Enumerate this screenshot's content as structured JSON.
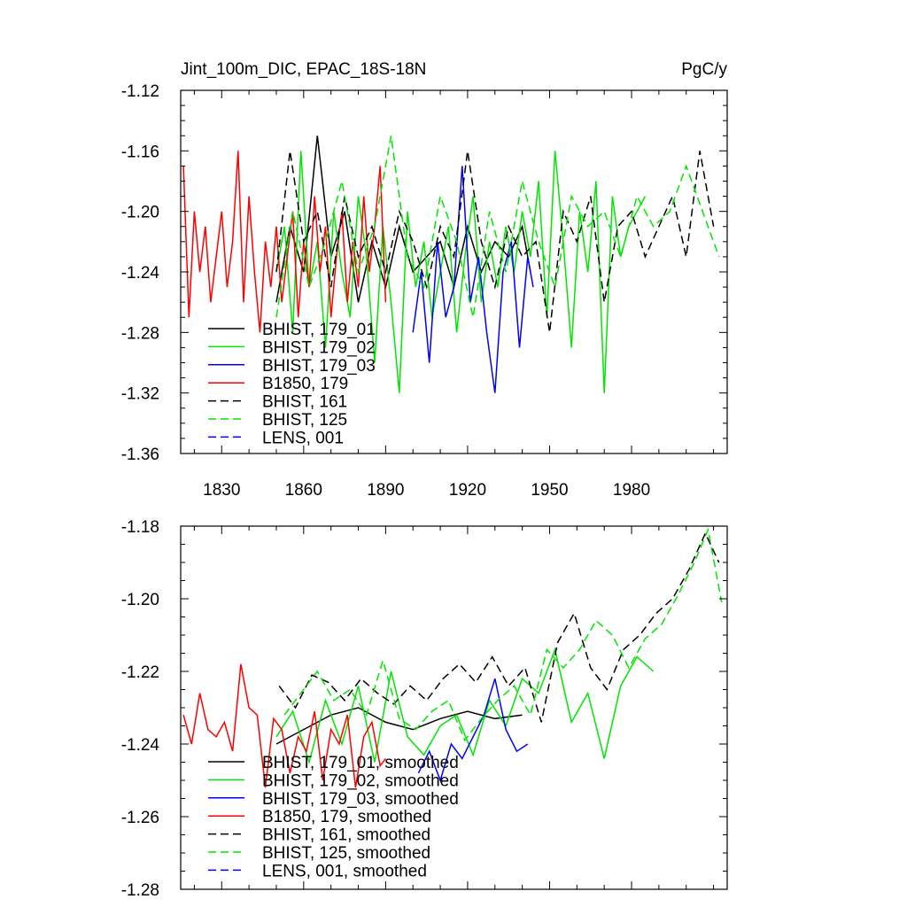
{
  "chart_data": [
    {
      "type": "line",
      "title": "Jint_100m_DIC, EPAC_18S-18N",
      "units": "PgC/y",
      "xlim": [
        1815,
        2015
      ],
      "ylim": [
        -1.36,
        -1.12
      ],
      "xticks": [
        1830,
        1860,
        1890,
        1920,
        1950,
        1980
      ],
      "yticks": [
        -1.36,
        -1.32,
        -1.28,
        -1.24,
        -1.2,
        -1.16,
        -1.12
      ],
      "ytick_labels": [
        "-1.36",
        "-1.32",
        "-1.28",
        "-1.24",
        "-1.20",
        "-1.16",
        "-1.12"
      ],
      "legend_position": "lower-left",
      "series": [
        {
          "name": "BHIST, 179_01",
          "color": "#000000",
          "dash": "solid",
          "x": [
            1850,
            1855,
            1860,
            1865,
            1870,
            1875,
            1880,
            1885,
            1890,
            1895,
            1900,
            1905,
            1910,
            1915,
            1920,
            1925,
            1930,
            1935,
            1940,
            1943
          ],
          "y": [
            -1.26,
            -1.21,
            -1.24,
            -1.15,
            -1.23,
            -1.2,
            -1.26,
            -1.22,
            -1.25,
            -1.21,
            -1.24,
            -1.23,
            -1.22,
            -1.25,
            -1.21,
            -1.24,
            -1.22,
            -1.23,
            -1.21,
            -1.24
          ]
        },
        {
          "name": "BHIST, 179_02",
          "color": "#00e600",
          "dash": "solid",
          "x": [
            1850,
            1853,
            1856,
            1859,
            1862,
            1865,
            1868,
            1871,
            1874,
            1877,
            1880,
            1883,
            1886,
            1889,
            1892,
            1895,
            1898,
            1901,
            1904,
            1907,
            1910,
            1913,
            1916,
            1919,
            1922,
            1925,
            1928,
            1931,
            1934,
            1937,
            1940,
            1943,
            1946,
            1949,
            1952,
            1955,
            1958,
            1961,
            1964,
            1967,
            1970,
            1973,
            1976,
            1979,
            1982,
            1985
          ],
          "y": [
            -1.24,
            -1.21,
            -1.28,
            -1.16,
            -1.25,
            -1.22,
            -1.29,
            -1.2,
            -1.24,
            -1.27,
            -1.19,
            -1.23,
            -1.3,
            -1.21,
            -1.26,
            -1.32,
            -1.2,
            -1.25,
            -1.22,
            -1.27,
            -1.24,
            -1.21,
            -1.28,
            -1.23,
            -1.19,
            -1.26,
            -1.22,
            -1.25,
            -1.21,
            -1.24,
            -1.2,
            -1.23,
            -1.18,
            -1.27,
            -1.16,
            -1.22,
            -1.29,
            -1.2,
            -1.24,
            -1.18,
            -1.32,
            -1.19,
            -1.23,
            -1.21,
            -1.2,
            -1.19
          ]
        },
        {
          "name": "BHIST, 179_03",
          "color": "#0000ff",
          "dash": "solid",
          "x": [
            1900,
            1903,
            1906,
            1909,
            1912,
            1915,
            1918,
            1921,
            1924,
            1927,
            1930,
            1933,
            1936,
            1939,
            1942,
            1944
          ],
          "y": [
            -1.28,
            -1.24,
            -1.3,
            -1.22,
            -1.27,
            -1.25,
            -1.17,
            -1.26,
            -1.23,
            -1.28,
            -1.32,
            -1.24,
            -1.22,
            -1.29,
            -1.23,
            -1.25
          ]
        },
        {
          "name": "B1850, 179",
          "color": "#ff0000",
          "dash": "solid",
          "x": [
            1816,
            1818,
            1820,
            1822,
            1824,
            1826,
            1828,
            1830,
            1832,
            1834,
            1836,
            1838,
            1840,
            1842,
            1844,
            1846,
            1848,
            1850,
            1852,
            1854,
            1856,
            1858,
            1860,
            1862,
            1864,
            1866,
            1868,
            1870,
            1872,
            1874,
            1876,
            1878,
            1880,
            1882,
            1884,
            1886,
            1888,
            1890
          ],
          "y": [
            -1.17,
            -1.27,
            -1.2,
            -1.24,
            -1.21,
            -1.26,
            -1.23,
            -1.2,
            -1.25,
            -1.22,
            -1.16,
            -1.26,
            -1.19,
            -1.24,
            -1.28,
            -1.22,
            -1.25,
            -1.21,
            -1.26,
            -1.23,
            -1.2,
            -1.27,
            -1.22,
            -1.25,
            -1.19,
            -1.24,
            -1.21,
            -1.27,
            -1.23,
            -1.2,
            -1.26,
            -1.22,
            -1.25,
            -1.19,
            -1.24,
            -1.21,
            -1.17,
            -1.26
          ]
        },
        {
          "name": "BHIST, 161",
          "color": "#000000",
          "dash": "dashed",
          "x": [
            1850,
            1855,
            1860,
            1865,
            1870,
            1875,
            1880,
            1885,
            1890,
            1895,
            1900,
            1905,
            1910,
            1915,
            1920,
            1925,
            1930,
            1935,
            1940,
            1945,
            1950,
            1955,
            1960,
            1965,
            1970,
            1975,
            1980,
            1985,
            1990,
            1995,
            2000,
            2005,
            2010
          ],
          "y": [
            -1.24,
            -1.16,
            -1.22,
            -1.2,
            -1.25,
            -1.19,
            -1.23,
            -1.21,
            -1.24,
            -1.2,
            -1.22,
            -1.25,
            -1.21,
            -1.23,
            -1.16,
            -1.22,
            -1.25,
            -1.21,
            -1.23,
            -1.22,
            -1.28,
            -1.2,
            -1.22,
            -1.19,
            -1.26,
            -1.21,
            -1.2,
            -1.23,
            -1.21,
            -1.19,
            -1.23,
            -1.16,
            -1.21
          ]
        },
        {
          "name": "BHIST, 125",
          "color": "#00e600",
          "dash": "dashed",
          "x": [
            1850,
            1856,
            1862,
            1868,
            1874,
            1880,
            1886,
            1892,
            1898,
            1904,
            1910,
            1916,
            1922,
            1928,
            1934,
            1940,
            1946,
            1952,
            1958,
            1964,
            1970,
            1976,
            1982,
            1988,
            1994,
            2000,
            2006,
            2012
          ],
          "y": [
            -1.27,
            -1.2,
            -1.25,
            -1.22,
            -1.18,
            -1.24,
            -1.21,
            -1.15,
            -1.23,
            -1.25,
            -1.19,
            -1.22,
            -1.27,
            -1.2,
            -1.24,
            -1.18,
            -1.22,
            -1.25,
            -1.19,
            -1.21,
            -1.2,
            -1.23,
            -1.19,
            -1.21,
            -1.2,
            -1.17,
            -1.2,
            -1.23
          ]
        },
        {
          "name": "LENS, 001",
          "color": "#0000ff",
          "dash": "dashed",
          "x": [],
          "y": []
        }
      ]
    },
    {
      "type": "line",
      "xlim": [
        1815,
        2015
      ],
      "ylim": [
        -1.28,
        -1.18
      ],
      "xticks": [
        1830,
        1860,
        1890,
        1920,
        1950,
        1980
      ],
      "yticks": [
        -1.28,
        -1.26,
        -1.24,
        -1.22,
        -1.2,
        -1.18
      ],
      "ytick_labels": [
        "-1.28",
        "-1.26",
        "-1.24",
        "-1.22",
        "-1.20",
        "-1.18"
      ],
      "legend_position": "lower-left",
      "series": [
        {
          "name": "BHIST, 179_01, smoothed",
          "color": "#000000",
          "dash": "solid",
          "x": [
            1850,
            1860,
            1870,
            1880,
            1890,
            1900,
            1910,
            1920,
            1930,
            1940
          ],
          "y": [
            -1.24,
            -1.236,
            -1.232,
            -1.23,
            -1.234,
            -1.236,
            -1.233,
            -1.231,
            -1.233,
            -1.232
          ]
        },
        {
          "name": "BHIST, 179_02, smoothed",
          "color": "#00e600",
          "dash": "solid",
          "x": [
            1850,
            1856,
            1862,
            1868,
            1874,
            1880,
            1886,
            1892,
            1898,
            1904,
            1910,
            1916,
            1922,
            1928,
            1934,
            1940,
            1946,
            1952,
            1958,
            1964,
            1970,
            1976,
            1982,
            1988
          ],
          "y": [
            -1.238,
            -1.231,
            -1.245,
            -1.228,
            -1.24,
            -1.224,
            -1.245,
            -1.22,
            -1.238,
            -1.243,
            -1.235,
            -1.232,
            -1.243,
            -1.228,
            -1.235,
            -1.222,
            -1.226,
            -1.214,
            -1.234,
            -1.226,
            -1.244,
            -1.224,
            -1.216,
            -1.22
          ]
        },
        {
          "name": "BHIST, 179_03, smoothed",
          "color": "#0000ff",
          "dash": "solid",
          "x": [
            1902,
            1906,
            1910,
            1914,
            1918,
            1922,
            1926,
            1930,
            1934,
            1938,
            1942
          ],
          "y": [
            -1.248,
            -1.242,
            -1.25,
            -1.24,
            -1.244,
            -1.238,
            -1.232,
            -1.222,
            -1.236,
            -1.242,
            -1.24
          ]
        },
        {
          "name": "B1850, 179, smoothed",
          "color": "#ff0000",
          "dash": "solid",
          "x": [
            1816,
            1819,
            1822,
            1825,
            1828,
            1831,
            1834,
            1837,
            1840,
            1843,
            1846,
            1849,
            1852,
            1855,
            1858,
            1861,
            1864,
            1867,
            1870,
            1873,
            1876,
            1879,
            1882,
            1885,
            1888,
            1890
          ],
          "y": [
            -1.232,
            -1.24,
            -1.226,
            -1.236,
            -1.238,
            -1.234,
            -1.242,
            -1.218,
            -1.23,
            -1.232,
            -1.252,
            -1.233,
            -1.236,
            -1.248,
            -1.238,
            -1.242,
            -1.231,
            -1.25,
            -1.236,
            -1.24,
            -1.232,
            -1.252,
            -1.238,
            -1.234,
            -1.246,
            -1.244
          ]
        },
        {
          "name": "BHIST, 161, smoothed",
          "color": "#000000",
          "dash": "dashed",
          "x": [
            1851,
            1857,
            1863,
            1869,
            1875,
            1881,
            1887,
            1893,
            1899,
            1905,
            1911,
            1917,
            1923,
            1929,
            1935,
            1941,
            1947,
            1953,
            1959,
            1965,
            1971,
            1977,
            1983,
            1989,
            1995,
            2001,
            2007,
            2012
          ],
          "y": [
            -1.224,
            -1.23,
            -1.221,
            -1.223,
            -1.228,
            -1.222,
            -1.226,
            -1.229,
            -1.224,
            -1.228,
            -1.222,
            -1.218,
            -1.223,
            -1.216,
            -1.224,
            -1.219,
            -1.234,
            -1.212,
            -1.204,
            -1.219,
            -1.225,
            -1.214,
            -1.21,
            -1.204,
            -1.2,
            -1.192,
            -1.182,
            -1.19
          ]
        },
        {
          "name": "BHIST, 125, smoothed",
          "color": "#00e600",
          "dash": "dashed",
          "x": [
            1853,
            1859,
            1865,
            1871,
            1877,
            1883,
            1889,
            1895,
            1901,
            1907,
            1913,
            1919,
            1925,
            1931,
            1937,
            1943,
            1949,
            1955,
            1961,
            1967,
            1973,
            1979,
            1985,
            1991,
            1997,
            2003,
            2008,
            2013
          ],
          "y": [
            -1.232,
            -1.226,
            -1.22,
            -1.228,
            -1.225,
            -1.232,
            -1.217,
            -1.233,
            -1.236,
            -1.231,
            -1.228,
            -1.239,
            -1.233,
            -1.228,
            -1.224,
            -1.232,
            -1.214,
            -1.219,
            -1.214,
            -1.206,
            -1.21,
            -1.219,
            -1.211,
            -1.207,
            -1.199,
            -1.19,
            -1.181,
            -1.201
          ]
        },
        {
          "name": "LENS, 001, smoothed",
          "color": "#0000ff",
          "dash": "dashed",
          "x": [],
          "y": []
        }
      ]
    }
  ]
}
